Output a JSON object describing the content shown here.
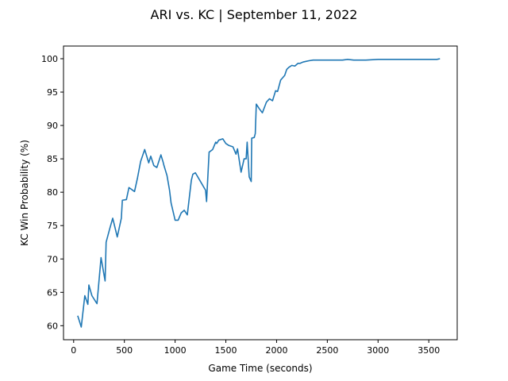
{
  "chart_data": {
    "type": "line",
    "title": "ARI vs. KC | September 11, 2022",
    "xlabel": "Game Time (seconds)",
    "ylabel": "KC Win Probability (%)",
    "xlim": [
      -100,
      3780
    ],
    "ylim": [
      57.9,
      101.9
    ],
    "xticks": [
      0,
      500,
      1000,
      1500,
      2000,
      2500,
      3000,
      3500
    ],
    "yticks": [
      60,
      65,
      70,
      75,
      80,
      85,
      90,
      95,
      100
    ],
    "grid": false,
    "color": "#1f77b4",
    "x": [
      40,
      75,
      110,
      140,
      150,
      180,
      230,
      270,
      310,
      320,
      355,
      385,
      430,
      470,
      480,
      520,
      545,
      600,
      630,
      660,
      700,
      740,
      760,
      790,
      820,
      860,
      880,
      890,
      920,
      945,
      960,
      1000,
      1030,
      1060,
      1090,
      1120,
      1160,
      1175,
      1200,
      1250,
      1300,
      1310,
      1335,
      1370,
      1400,
      1410,
      1430,
      1470,
      1500,
      1530,
      1570,
      1600,
      1615,
      1630,
      1650,
      1680,
      1700,
      1710,
      1730,
      1750,
      1755,
      1780,
      1790,
      1800,
      1830,
      1860,
      1900,
      1930,
      1960,
      1990,
      2010,
      2040,
      2080,
      2100,
      2120,
      2150,
      2180,
      2210,
      2230,
      2260,
      2290,
      2320,
      2360,
      2400,
      2450,
      2500,
      2550,
      2600,
      2650,
      2700,
      2760,
      2820,
      2880,
      3000,
      3200,
      3400,
      3580,
      3610
    ],
    "y": [
      61.5,
      59.8,
      64.5,
      63.2,
      66.1,
      64.5,
      63.3,
      70.2,
      66.7,
      72.5,
      74.5,
      76.1,
      73.3,
      76.1,
      78.8,
      78.9,
      80.7,
      80.1,
      82.2,
      84.6,
      86.4,
      84.4,
      85.4,
      84.0,
      83.7,
      85.6,
      84.6,
      84.0,
      82.5,
      80.3,
      78.4,
      75.8,
      75.8,
      76.9,
      77.3,
      76.6,
      81.8,
      82.7,
      82.9,
      81.6,
      80.3,
      78.6,
      86.0,
      86.4,
      87.5,
      87.3,
      87.8,
      88.0,
      87.3,
      87.0,
      86.8,
      85.7,
      86.5,
      85.0,
      83.0,
      85.0,
      85.0,
      87.5,
      82.3,
      81.6,
      88.1,
      88.2,
      88.8,
      93.2,
      92.5,
      91.9,
      93.5,
      94.0,
      93.7,
      95.2,
      95.1,
      96.8,
      97.5,
      98.4,
      98.7,
      99.0,
      98.9,
      99.3,
      99.3,
      99.5,
      99.6,
      99.7,
      99.8,
      99.8,
      99.8,
      99.8,
      99.8,
      99.8,
      99.8,
      99.9,
      99.8,
      99.8,
      99.8,
      99.9,
      99.9,
      99.9,
      99.9,
      100.0
    ]
  }
}
